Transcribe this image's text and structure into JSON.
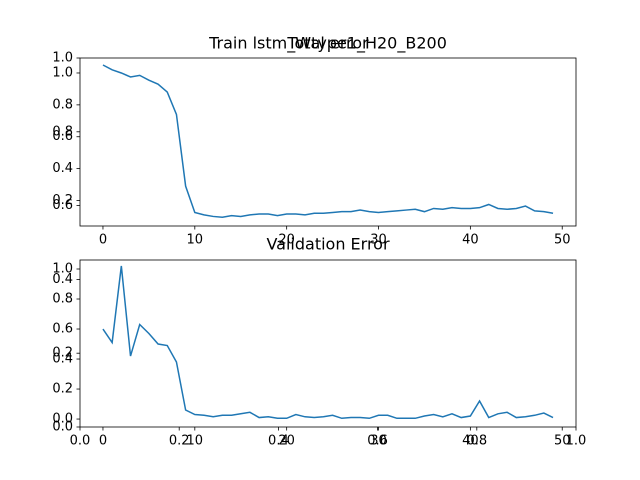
{
  "chart_data": [
    {
      "type": "axes",
      "title": "Train lstm_Wtype1_H20_B200",
      "xlim": [
        0,
        1
      ],
      "ylim": [
        0,
        1
      ],
      "xticks": [
        {
          "value": 0,
          "label": "0.0"
        },
        0.2,
        0.4,
        0.6,
        0.8,
        {
          "value": 1,
          "label": "1.0"
        }
      ],
      "yticks": [
        {
          "value": 0,
          "label": "0.0"
        },
        0.2,
        0.4,
        0.6,
        0.8,
        {
          "value": 1,
          "label": "1.0"
        }
      ]
    },
    {
      "type": "line",
      "title": "Total error",
      "color": "#1f77b4",
      "x": [
        0,
        1,
        2,
        3,
        4,
        5,
        6,
        7,
        8,
        9,
        10,
        11,
        12,
        13,
        14,
        15,
        16,
        17,
        18,
        19,
        20,
        21,
        22,
        23,
        24,
        25,
        26,
        27,
        28,
        29,
        30,
        31,
        32,
        33,
        34,
        35,
        36,
        37,
        38,
        39,
        40,
        41,
        42,
        43,
        44,
        45,
        46,
        47,
        48,
        49
      ],
      "values": [
        1.05,
        1.02,
        1.0,
        0.975,
        0.985,
        0.955,
        0.93,
        0.88,
        0.74,
        0.29,
        0.125,
        0.11,
        0.1,
        0.095,
        0.105,
        0.1,
        0.11,
        0.115,
        0.115,
        0.105,
        0.115,
        0.115,
        0.11,
        0.12,
        0.12,
        0.125,
        0.13,
        0.13,
        0.14,
        0.13,
        0.125,
        0.13,
        0.135,
        0.14,
        0.145,
        0.13,
        0.15,
        0.145,
        0.155,
        0.15,
        0.15,
        0.155,
        0.175,
        0.15,
        0.145,
        0.15,
        0.165,
        0.135,
        0.13,
        0.12
      ],
      "xlim": [
        -2.5,
        51.5
      ],
      "ylim": [
        0.04,
        1.094
      ],
      "xticks": [
        0,
        10,
        20,
        30,
        40,
        50
      ],
      "yticks": [
        0.2,
        0.4,
        0.6,
        0.8,
        {
          "value": 1,
          "label": "1.0"
        }
      ]
    },
    {
      "type": "line",
      "title": "Validation Error",
      "color": "#1f77b4",
      "x": [
        0,
        1,
        2,
        3,
        4,
        5,
        6,
        7,
        8,
        9,
        10,
        11,
        12,
        13,
        14,
        15,
        16,
        17,
        18,
        19,
        20,
        21,
        22,
        23,
        24,
        25,
        26,
        27,
        28,
        29,
        30,
        31,
        32,
        33,
        34,
        35,
        36,
        37,
        38,
        39,
        40,
        41,
        42,
        43,
        44,
        45,
        46,
        47,
        48,
        49
      ],
      "values": [
        0.6,
        0.51,
        1.02,
        0.42,
        0.63,
        0.57,
        0.5,
        0.49,
        0.38,
        0.06,
        0.03,
        0.025,
        0.015,
        0.025,
        0.025,
        0.035,
        0.045,
        0.01,
        0.015,
        0.005,
        0.005,
        0.03,
        0.015,
        0.01,
        0.015,
        0.025,
        0.005,
        0.01,
        0.01,
        0.005,
        0.025,
        0.025,
        0.005,
        0.005,
        0.005,
        0.02,
        0.03,
        0.015,
        0.035,
        0.01,
        0.02,
        0.12,
        0.01,
        0.035,
        0.045,
        0.01,
        0.015,
        0.025,
        0.04,
        0.01
      ],
      "xlim": [
        -2.5,
        51.5
      ],
      "ylim": [
        -0.053,
        1.06
      ],
      "xticks": [
        0,
        10,
        20,
        30,
        40,
        50
      ],
      "yticks": [
        {
          "value": 0,
          "label": "0.0"
        },
        0.2,
        0.4,
        0.6,
        0.8,
        {
          "value": 1,
          "label": "1.0"
        }
      ]
    }
  ]
}
